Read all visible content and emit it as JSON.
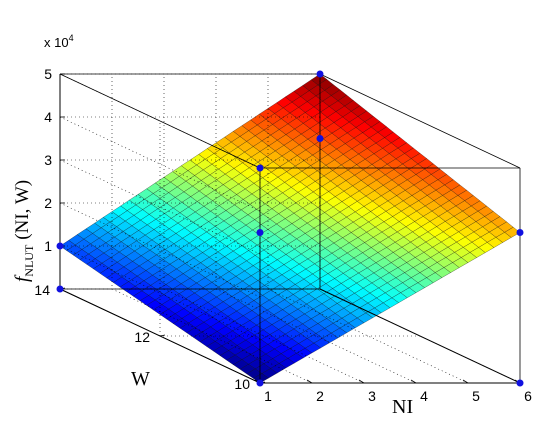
{
  "chart_data": {
    "type": "surface",
    "title": "",
    "xlabel": "NI",
    "ylabel": "W",
    "zlabel_main": "f",
    "zlabel_sub": "NLUT",
    "zlabel_args": "(NI, W)",
    "z_exponent_label": "x 10",
    "z_exponent_power": "4",
    "xlim": [
      1,
      6
    ],
    "ylim": [
      10,
      14
    ],
    "zlim": [
      0,
      50000
    ],
    "x_ticks": [
      "1",
      "2",
      "3",
      "4",
      "5",
      "6"
    ],
    "y_ticks": [
      "10",
      "12",
      "14"
    ],
    "z_ticks": [
      "1",
      "2",
      "3",
      "4",
      "5"
    ],
    "colormap": "jet",
    "grid": true,
    "surface_corners": [
      {
        "x": 1,
        "y": 10,
        "z": 0
      },
      {
        "x": 6,
        "y": 10,
        "z": 35000
      },
      {
        "x": 1,
        "y": 14,
        "z": 10000
      },
      {
        "x": 6,
        "y": 14,
        "z": 50000
      }
    ]
  }
}
